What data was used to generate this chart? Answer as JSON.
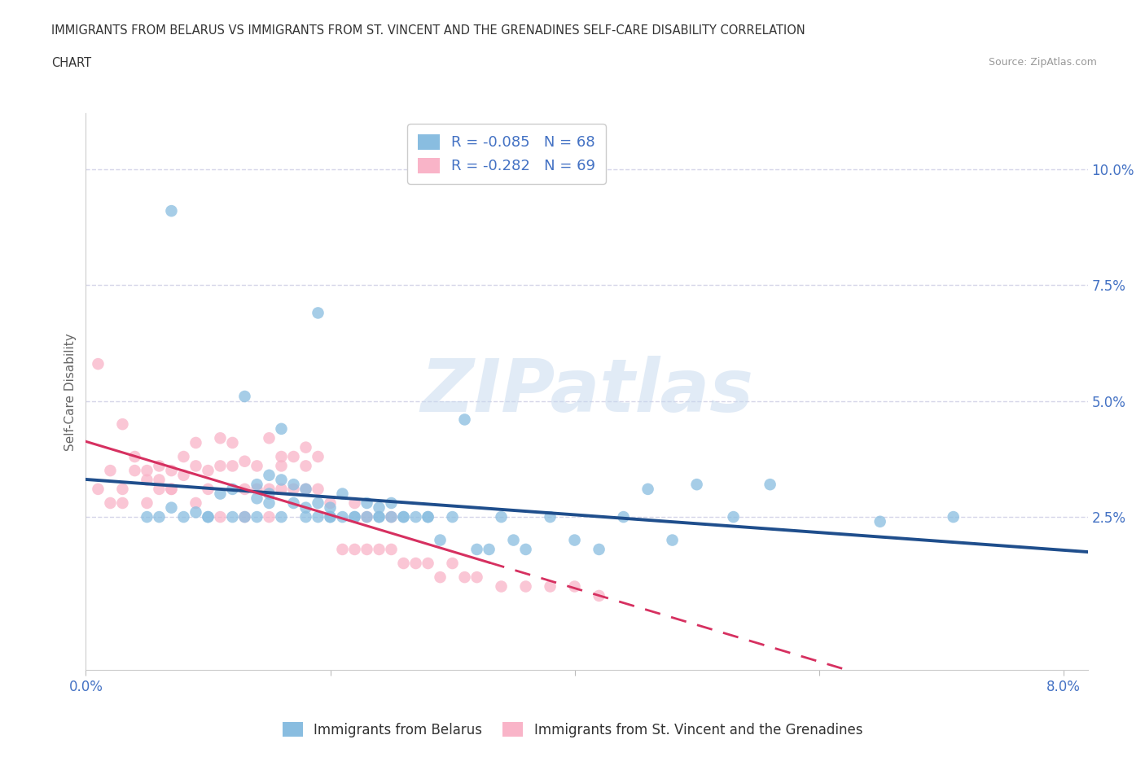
{
  "title_line1": "IMMIGRANTS FROM BELARUS VS IMMIGRANTS FROM ST. VINCENT AND THE GRENADINES SELF-CARE DISABILITY CORRELATION",
  "title_line2": "CHART",
  "source_text": "Source: ZipAtlas.com",
  "watermark": "ZIPatlas",
  "ylabel": "Self-Care Disability",
  "xlim": [
    0.0,
    0.082
  ],
  "ylim": [
    -0.008,
    0.112
  ],
  "legend_entry1_label": "R = -0.085   N = 68",
  "legend_entry2_label": "R = -0.282   N = 69",
  "legend_bottom1": "Immigrants from Belarus",
  "legend_bottom2": "Immigrants from St. Vincent and the Grenadines",
  "color_blue": "#89bde0",
  "color_pink": "#f9b4c8",
  "color_line_blue": "#1f4e8c",
  "color_line_pink": "#d63060",
  "grid_color": "#d5d5e8",
  "background_color": "#ffffff",
  "title_color": "#333333",
  "axis_color": "#4472c4",
  "blue_x": [
    0.007,
    0.007,
    0.009,
    0.01,
    0.011,
    0.012,
    0.013,
    0.013,
    0.014,
    0.014,
    0.015,
    0.015,
    0.015,
    0.016,
    0.016,
    0.017,
    0.017,
    0.018,
    0.018,
    0.019,
    0.019,
    0.019,
    0.02,
    0.02,
    0.021,
    0.021,
    0.022,
    0.023,
    0.023,
    0.024,
    0.024,
    0.025,
    0.025,
    0.026,
    0.027,
    0.028,
    0.028,
    0.029,
    0.03,
    0.031,
    0.032,
    0.033,
    0.034,
    0.035,
    0.036,
    0.038,
    0.04,
    0.042,
    0.044,
    0.046,
    0.048,
    0.053,
    0.056,
    0.065,
    0.071,
    0.005,
    0.006,
    0.008,
    0.01,
    0.012,
    0.014,
    0.016,
    0.018,
    0.02,
    0.022,
    0.024,
    0.026,
    0.05
  ],
  "blue_y": [
    0.091,
    0.027,
    0.026,
    0.025,
    0.03,
    0.031,
    0.051,
    0.025,
    0.029,
    0.032,
    0.034,
    0.028,
    0.03,
    0.033,
    0.044,
    0.028,
    0.032,
    0.027,
    0.031,
    0.028,
    0.069,
    0.025,
    0.027,
    0.025,
    0.03,
    0.025,
    0.025,
    0.028,
    0.025,
    0.027,
    0.025,
    0.028,
    0.025,
    0.025,
    0.025,
    0.025,
    0.025,
    0.02,
    0.025,
    0.046,
    0.018,
    0.018,
    0.025,
    0.02,
    0.018,
    0.025,
    0.02,
    0.018,
    0.025,
    0.031,
    0.02,
    0.025,
    0.032,
    0.024,
    0.025,
    0.025,
    0.025,
    0.025,
    0.025,
    0.025,
    0.025,
    0.025,
    0.025,
    0.025,
    0.025,
    0.025,
    0.025,
    0.032
  ],
  "pink_x": [
    0.001,
    0.002,
    0.002,
    0.003,
    0.003,
    0.004,
    0.004,
    0.005,
    0.005,
    0.006,
    0.006,
    0.006,
    0.007,
    0.007,
    0.008,
    0.008,
    0.009,
    0.009,
    0.01,
    0.01,
    0.011,
    0.011,
    0.012,
    0.012,
    0.013,
    0.013,
    0.014,
    0.014,
    0.015,
    0.015,
    0.016,
    0.016,
    0.016,
    0.017,
    0.017,
    0.018,
    0.018,
    0.018,
    0.019,
    0.019,
    0.02,
    0.021,
    0.022,
    0.022,
    0.023,
    0.023,
    0.024,
    0.025,
    0.025,
    0.026,
    0.027,
    0.028,
    0.029,
    0.03,
    0.031,
    0.032,
    0.034,
    0.036,
    0.038,
    0.04,
    0.042,
    0.001,
    0.003,
    0.005,
    0.007,
    0.009,
    0.011,
    0.013,
    0.015
  ],
  "pink_y": [
    0.031,
    0.028,
    0.035,
    0.031,
    0.028,
    0.035,
    0.038,
    0.033,
    0.028,
    0.036,
    0.033,
    0.031,
    0.035,
    0.031,
    0.038,
    0.034,
    0.041,
    0.036,
    0.035,
    0.031,
    0.042,
    0.036,
    0.041,
    0.036,
    0.037,
    0.031,
    0.036,
    0.031,
    0.042,
    0.031,
    0.038,
    0.036,
    0.031,
    0.038,
    0.031,
    0.04,
    0.036,
    0.031,
    0.038,
    0.031,
    0.028,
    0.018,
    0.028,
    0.018,
    0.025,
    0.018,
    0.018,
    0.025,
    0.018,
    0.015,
    0.015,
    0.015,
    0.012,
    0.015,
    0.012,
    0.012,
    0.01,
    0.01,
    0.01,
    0.01,
    0.008,
    0.058,
    0.045,
    0.035,
    0.031,
    0.028,
    0.025,
    0.025,
    0.025
  ]
}
